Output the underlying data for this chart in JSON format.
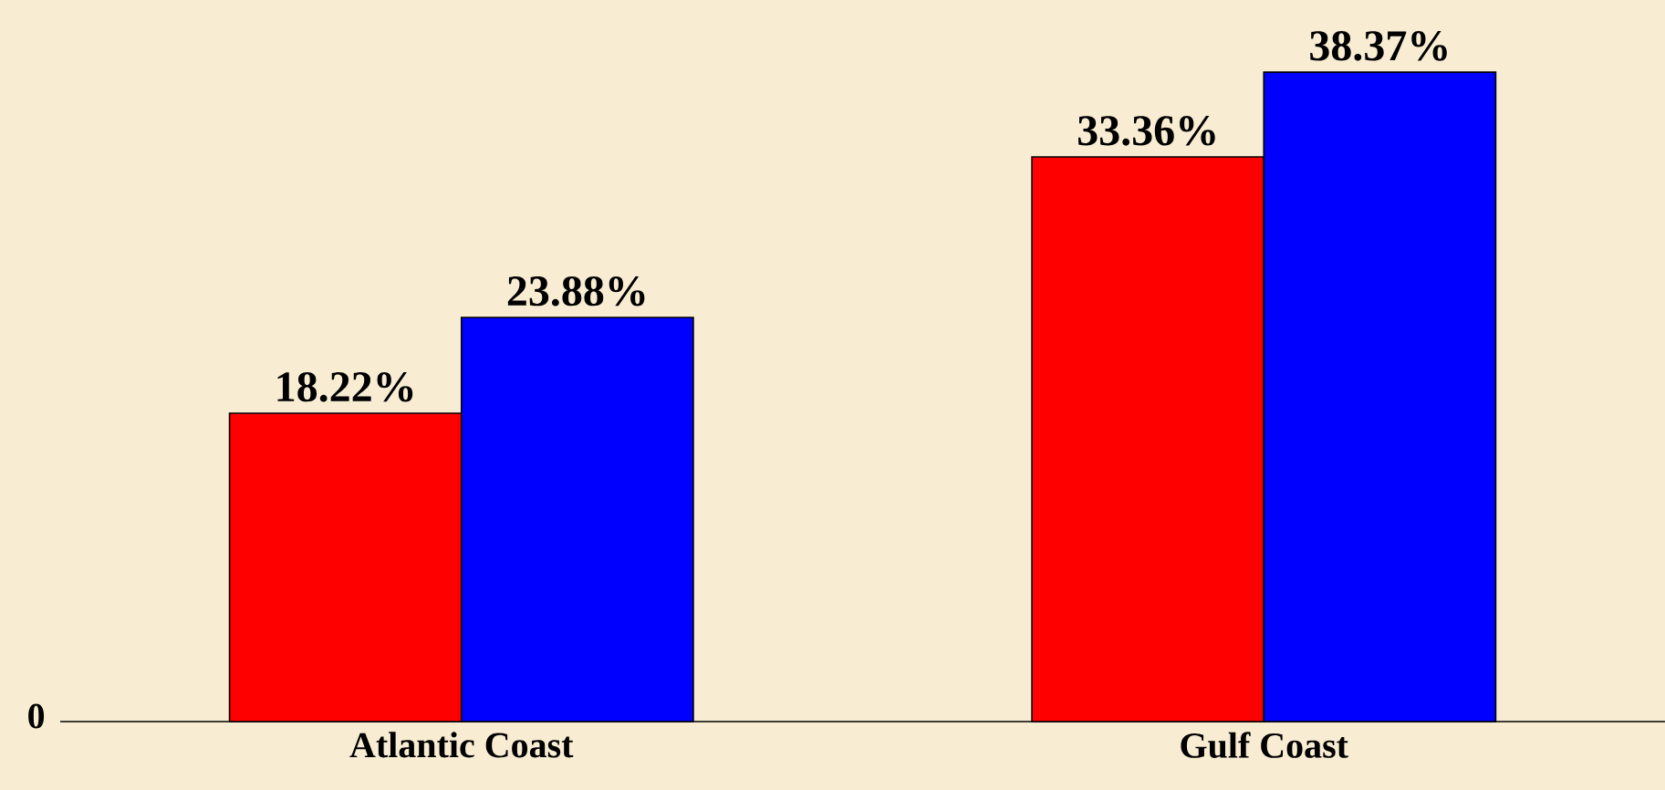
{
  "chart_data": {
    "type": "bar",
    "categories": [
      "Atlantic Coast",
      "Gulf Coast"
    ],
    "series": [
      {
        "color": "#ff0000",
        "values": [
          18.22,
          33.36
        ],
        "value_labels": [
          "18.22%",
          "33.36%"
        ]
      },
      {
        "color": "#0000ff",
        "values": [
          23.88,
          38.37
        ],
        "value_labels": [
          "23.88%",
          "38.37%"
        ]
      }
    ],
    "annotations": [
      "0"
    ]
  }
}
